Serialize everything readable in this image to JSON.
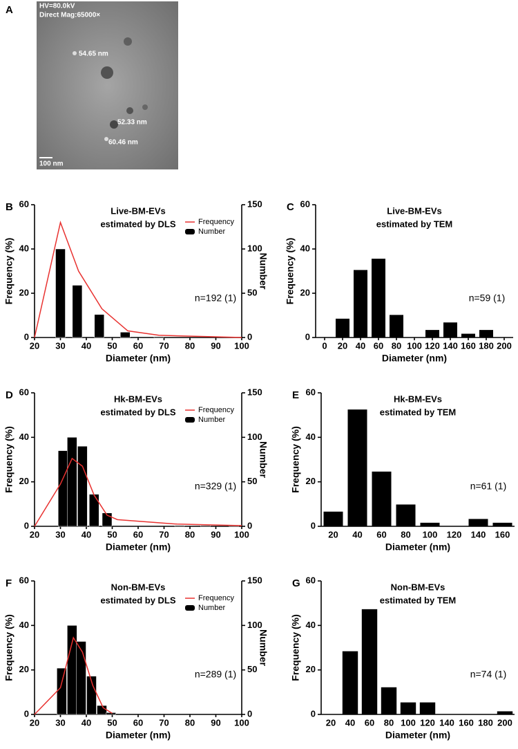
{
  "image": {
    "panel": "A",
    "labels": [
      "HV=80.0kV",
      "Direct Mag:65000×"
    ],
    "measurements": [
      "54.65 nm",
      "52.33 nm",
      "60.46 nm"
    ],
    "scale_bar": "100 nm"
  },
  "chart_data": [
    {
      "type": "combo",
      "panel": "B",
      "title": "Live-BM-EVs",
      "subtitle": "estimated by DLS",
      "xlabel": "Diameter (nm)",
      "ylabel": "Frequency (%)",
      "y2label": "Number",
      "annotation": "n=192 (1)",
      "xlim": [
        20,
        100
      ],
      "xticks": [
        20,
        30,
        40,
        50,
        60,
        70,
        80,
        90,
        100
      ],
      "ylim": [
        0,
        60
      ],
      "yticks": [
        0,
        20,
        40,
        60
      ],
      "y2lim": [
        0,
        150
      ],
      "y2ticks": [
        0,
        50,
        100,
        150
      ],
      "legend": "upper right",
      "series": [
        {
          "name": "Frequency",
          "type": "line",
          "color": "#e8312f",
          "x": [
            20,
            30,
            37,
            46,
            56,
            68,
            100
          ],
          "values": [
            0,
            52,
            30,
            13,
            3,
            1,
            0
          ]
        },
        {
          "name": "Number",
          "type": "bar",
          "axis": "y2",
          "color": "#000000",
          "x": [
            30,
            36.5,
            45,
            55,
            68
          ],
          "values": [
            100,
            59,
            26,
            6,
            1
          ]
        }
      ]
    },
    {
      "type": "bar",
      "panel": "C",
      "title": "Live-BM-EVs",
      "subtitle": "estimated by TEM",
      "xlabel": "Diameter (nm)",
      "ylabel": "Frequency (%)",
      "annotation": "n=59 (1)",
      "xlim": [
        -10,
        210
      ],
      "xticks": [
        0,
        20,
        40,
        60,
        80,
        100,
        120,
        140,
        160,
        180,
        200
      ],
      "ylim": [
        0,
        60
      ],
      "yticks": [
        0,
        20,
        40,
        60
      ],
      "color": "#000000",
      "x": [
        20,
        40,
        60,
        80,
        100,
        120,
        140,
        160,
        180
      ],
      "values": [
        8.5,
        30.5,
        35.6,
        10.2,
        0,
        3.4,
        6.8,
        1.7,
        3.4
      ]
    },
    {
      "type": "combo",
      "panel": "D",
      "title": "Hk-BM-EVs",
      "subtitle": "estimated by DLS",
      "xlabel": "Diameter (nm)",
      "ylabel": "Frequency (%)",
      "y2label": "Number",
      "annotation": "n=329 (1)",
      "xlim": [
        20,
        100
      ],
      "xticks": [
        20,
        30,
        40,
        50,
        60,
        70,
        80,
        90,
        100
      ],
      "ylim": [
        0,
        60
      ],
      "yticks": [
        0,
        20,
        40,
        60
      ],
      "y2lim": [
        0,
        150
      ],
      "y2ticks": [
        0,
        50,
        100,
        150
      ],
      "legend": "upper right",
      "series": [
        {
          "name": "Frequency",
          "type": "line",
          "color": "#e8312f",
          "x": [
            20,
            30,
            34.5,
            38.5,
            43,
            48,
            52,
            75,
            100
          ],
          "values": [
            0,
            19,
            30.5,
            27,
            14,
            5,
            3,
            1,
            0.3
          ]
        },
        {
          "name": "Number",
          "type": "bar",
          "axis": "y2",
          "color": "#000000",
          "x": [
            31,
            34.5,
            38.5,
            43,
            48,
            76,
            86,
            97
          ],
          "values": [
            85,
            100,
            90,
            36,
            15,
            1,
            1,
            1
          ]
        }
      ]
    },
    {
      "type": "bar",
      "panel": "E",
      "title": "Hk-BM-EVs",
      "subtitle": "estimated by TEM",
      "xlabel": "Diameter (nm)",
      "ylabel": "Frequency (%)",
      "annotation": "n=61 (1)",
      "ylim": [
        0,
        60
      ],
      "yticks": [
        0,
        20,
        40,
        60
      ],
      "color": "#000000",
      "categories": [
        20,
        40,
        60,
        80,
        100,
        120,
        140,
        160
      ],
      "values": [
        6.6,
        52.5,
        24.6,
        9.8,
        1.6,
        0,
        3.3,
        1.6
      ]
    },
    {
      "type": "combo",
      "panel": "F",
      "title": "Non-BM-EVs",
      "subtitle": "estimated by DLS",
      "xlabel": "Diameter (nm)",
      "ylabel": "Frequency (%)",
      "y2label": "Number",
      "annotation": "n=289 (1)",
      "xlim": [
        20,
        100
      ],
      "xticks": [
        20,
        30,
        40,
        50,
        60,
        70,
        80,
        90,
        100
      ],
      "ylim": [
        0,
        60
      ],
      "yticks": [
        0,
        20,
        40,
        60
      ],
      "y2lim": [
        0,
        150
      ],
      "y2ticks": [
        0,
        50,
        100,
        150
      ],
      "legend": "upper right",
      "series": [
        {
          "name": "Frequency",
          "type": "line",
          "color": "#e8312f",
          "x": [
            20,
            30,
            35,
            38.5,
            42.5,
            46.5,
            50
          ],
          "values": [
            0,
            12,
            34.5,
            28,
            13,
            3,
            0.5
          ]
        },
        {
          "name": "Number",
          "type": "bar",
          "axis": "y2",
          "color": "#000000",
          "x": [
            30.5,
            34.5,
            38,
            42,
            46,
            49.5
          ],
          "values": [
            52,
            100,
            82,
            43,
            10,
            2
          ]
        }
      ]
    },
    {
      "type": "bar",
      "panel": "G",
      "title": "Non-BM-EVs",
      "subtitle": "estimated by TEM",
      "xlabel": "Diameter (nm)",
      "ylabel": "Frequency (%)",
      "annotation": "n=74 (1)",
      "ylim": [
        0,
        60
      ],
      "yticks": [
        0,
        20,
        40,
        60
      ],
      "color": "#000000",
      "categories": [
        20,
        40,
        60,
        80,
        100,
        120,
        140,
        160,
        180,
        200
      ],
      "values": [
        0,
        28.4,
        47.3,
        12.2,
        5.4,
        5.4,
        0,
        0,
        0,
        1.4
      ]
    }
  ]
}
